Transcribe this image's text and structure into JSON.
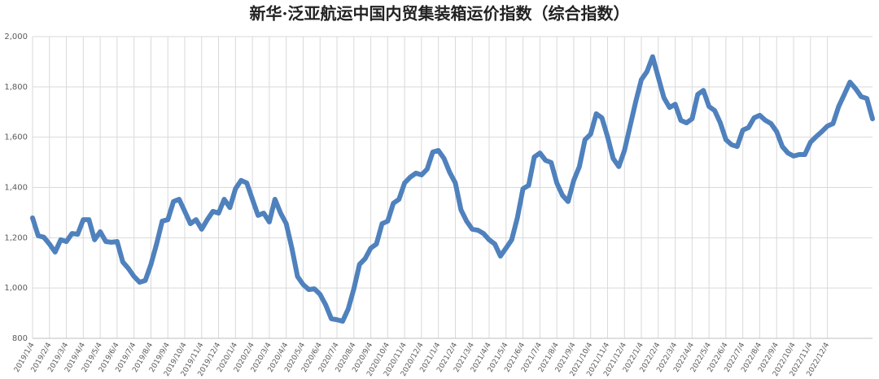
{
  "chart_data": {
    "type": "line",
    "title": "新华·泛亚航运中国内贸集装箱运价指数（综合指数）",
    "color": "#4f81bd",
    "grid": true,
    "ylim": [
      800,
      2000
    ],
    "yticks": [
      800,
      {
        "value": 1000,
        "label": "1,000"
      },
      {
        "value": 1200,
        "label": "1,200"
      },
      {
        "value": 1400,
        "label": "1,400"
      },
      {
        "value": 1600,
        "label": "1,600"
      },
      {
        "value": 1800,
        "label": "1,800"
      },
      {
        "value": 2000,
        "label": "2,000"
      }
    ],
    "categories": [
      "2019/1/4",
      null,
      null,
      "2019/2/4",
      null,
      null,
      "2019/3/4",
      null,
      null,
      "2019/4/4",
      null,
      null,
      "2019/5/4",
      null,
      null,
      "2019/6/4",
      null,
      null,
      "2019/7/4",
      null,
      null,
      "2019/8/4",
      null,
      null,
      "2019/9/4",
      null,
      null,
      "2019/10/4",
      null,
      null,
      "2019/11/4",
      null,
      null,
      "2019/12/4",
      null,
      null,
      "2020/1/4",
      null,
      null,
      "2020/2/4",
      null,
      null,
      "2020/3/4",
      null,
      null,
      "2020/4/4",
      null,
      null,
      "2020/5/4",
      null,
      null,
      "2020/6/4",
      null,
      null,
      "2020/7/4",
      null,
      null,
      "2020/8/4",
      null,
      null,
      "2020/9/4",
      null,
      null,
      "2020/10/4",
      null,
      null,
      "2020/11/4",
      null,
      null,
      "2020/12/4",
      null,
      null,
      "2021/1/4",
      null,
      null,
      "2021/2/4",
      null,
      null,
      "2021/3/4",
      null,
      null,
      "2021/4/4",
      null,
      null,
      "2021/5/4",
      null,
      null,
      "2021/6/4",
      null,
      null,
      "2021/7/4",
      null,
      null,
      "2021/8/4",
      null,
      null,
      "2021/9/4",
      null,
      null,
      "2021/10/4",
      null,
      null,
      "2021/11/4",
      null,
      null,
      "2021/12/4",
      null,
      null,
      "2022/1/4",
      null,
      null,
      "2022/2/4",
      null,
      null,
      "2022/3/4",
      null,
      null,
      "2022/4/4",
      null,
      null,
      "2022/5/4",
      null,
      null,
      "2022/6/4",
      null,
      null,
      "2022/7/4",
      null,
      null,
      "2022/8/4",
      null,
      null,
      "2022/9/4",
      null,
      null,
      "2022/10/4",
      null,
      null,
      "2022/11/4",
      null,
      null,
      "2022/12/4",
      null,
      null,
      null,
      null,
      null,
      null,
      null,
      null
    ],
    "values": [
      1279,
      1208,
      1202,
      1175,
      1143,
      1192,
      1185,
      1217,
      1214,
      1272,
      1272,
      1192,
      1224,
      1185,
      1182,
      1185,
      1104,
      1078,
      1046,
      1023,
      1030,
      1094,
      1175,
      1266,
      1272,
      1344,
      1353,
      1305,
      1256,
      1272,
      1234,
      1272,
      1305,
      1298,
      1353,
      1320,
      1395,
      1428,
      1418,
      1353,
      1289,
      1298,
      1263,
      1353,
      1298,
      1256,
      1159,
      1046,
      1014,
      994,
      997,
      975,
      933,
      878,
      874,
      868,
      917,
      997,
      1094,
      1117,
      1159,
      1175,
      1256,
      1266,
      1337,
      1353,
      1418,
      1441,
      1457,
      1450,
      1473,
      1541,
      1547,
      1515,
      1460,
      1418,
      1311,
      1266,
      1234,
      1230,
      1217,
      1192,
      1175,
      1127,
      1159,
      1192,
      1279,
      1395,
      1408,
      1521,
      1537,
      1508,
      1499,
      1418,
      1369,
      1344,
      1428,
      1483,
      1590,
      1612,
      1693,
      1677,
      1602,
      1515,
      1483,
      1547,
      1644,
      1741,
      1829,
      1861,
      1920,
      1838,
      1757,
      1718,
      1731,
      1667,
      1657,
      1673,
      1770,
      1786,
      1722,
      1706,
      1657,
      1590,
      1570,
      1563,
      1628,
      1638,
      1677,
      1687,
      1667,
      1654,
      1622,
      1563,
      1537,
      1525,
      1531,
      1531,
      1580,
      1602,
      1622,
      1644,
      1654,
      1722,
      1770,
      1819,
      1793,
      1761,
      1754,
      1673
    ]
  }
}
